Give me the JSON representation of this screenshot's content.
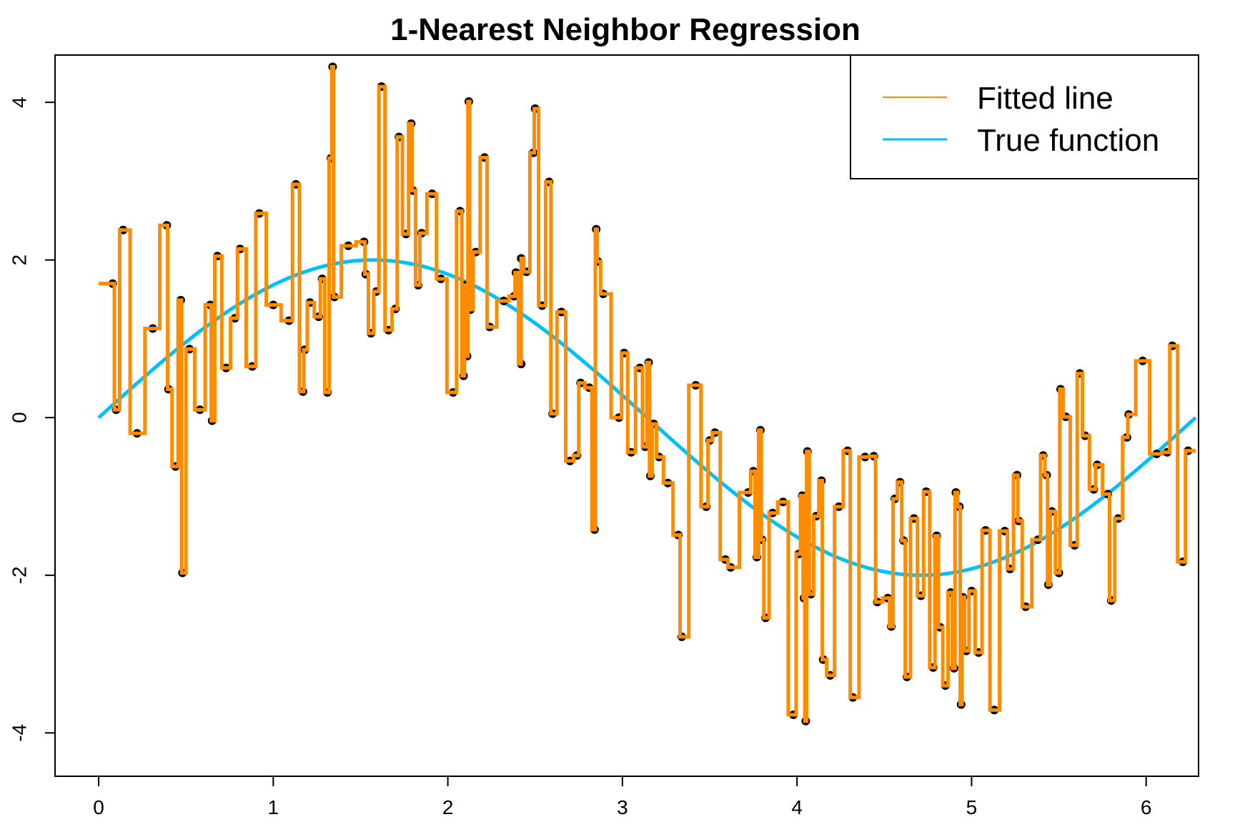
{
  "chart_data": {
    "type": "scatter",
    "title": "1-Nearest Neighbor Regression",
    "xlabel": "",
    "ylabel": "",
    "xlim": [
      -0.25,
      6.3
    ],
    "ylim": [
      -4.55,
      4.6
    ],
    "x_ticks": [
      0,
      1,
      2,
      3,
      4,
      5,
      6
    ],
    "x_tick_labels": [
      "0",
      "1",
      "2",
      "3",
      "4",
      "5",
      "6"
    ],
    "y_ticks": [
      -4,
      -2,
      0,
      2,
      4
    ],
    "y_tick_labels": [
      "-4",
      "-2",
      "0",
      "2",
      "4"
    ],
    "grid": false,
    "legend": {
      "position": "top-right",
      "entries": [
        {
          "label": "Fitted line",
          "color": "#FF8C00"
        },
        {
          "label": "True function",
          "color": "#00BFFF"
        }
      ]
    },
    "colors": {
      "points": "#000000",
      "fitted": "#FF8C00",
      "true_function": "#00BFFF"
    },
    "true_function": {
      "formula": "2*sin(x)",
      "amplitude": 2,
      "x_range": [
        0,
        6.283
      ]
    },
    "series": [
      {
        "name": "data",
        "points": [
          [
            0.08,
            1.7
          ],
          [
            0.1,
            0.1
          ],
          [
            0.14,
            2.38
          ],
          [
            0.22,
            -0.2
          ],
          [
            0.31,
            1.13
          ],
          [
            0.39,
            2.44
          ],
          [
            0.4,
            0.36
          ],
          [
            0.44,
            -0.62
          ],
          [
            0.47,
            1.49
          ],
          [
            0.48,
            -1.97
          ],
          [
            0.52,
            0.87
          ],
          [
            0.58,
            0.1
          ],
          [
            0.64,
            1.43
          ],
          [
            0.65,
            -0.04
          ],
          [
            0.68,
            2.05
          ],
          [
            0.73,
            0.63
          ],
          [
            0.78,
            1.26
          ],
          [
            0.81,
            2.14
          ],
          [
            0.88,
            0.65
          ],
          [
            0.92,
            2.59
          ],
          [
            1.0,
            1.43
          ],
          [
            1.09,
            1.23
          ],
          [
            1.13,
            2.96
          ],
          [
            1.17,
            0.33
          ],
          [
            1.18,
            0.86
          ],
          [
            1.21,
            1.46
          ],
          [
            1.26,
            1.28
          ],
          [
            1.28,
            1.76
          ],
          [
            1.31,
            0.32
          ],
          [
            1.33,
            3.29
          ],
          [
            1.34,
            4.45
          ],
          [
            1.35,
            1.53
          ],
          [
            1.43,
            2.18
          ],
          [
            1.52,
            2.23
          ],
          [
            1.53,
            1.82
          ],
          [
            1.56,
            1.07
          ],
          [
            1.59,
            1.6
          ],
          [
            1.62,
            4.2
          ],
          [
            1.66,
            1.11
          ],
          [
            1.7,
            1.38
          ],
          [
            1.72,
            3.56
          ],
          [
            1.76,
            2.33
          ],
          [
            1.79,
            3.73
          ],
          [
            1.8,
            2.88
          ],
          [
            1.83,
            1.68
          ],
          [
            1.85,
            2.34
          ],
          [
            1.91,
            2.84
          ],
          [
            1.96,
            1.76
          ],
          [
            2.03,
            0.32
          ],
          [
            2.07,
            2.62
          ],
          [
            2.09,
            0.53
          ],
          [
            2.1,
            1.68
          ],
          [
            2.11,
            0.78
          ],
          [
            2.12,
            4.01
          ],
          [
            2.13,
            1.37
          ],
          [
            2.16,
            2.1
          ],
          [
            2.21,
            3.3
          ],
          [
            2.24,
            1.15
          ],
          [
            2.32,
            1.48
          ],
          [
            2.38,
            1.54
          ],
          [
            2.39,
            1.84
          ],
          [
            2.42,
            0.68
          ],
          [
            2.42,
            2.02
          ],
          [
            2.45,
            1.85
          ],
          [
            2.49,
            3.36
          ],
          [
            2.5,
            3.92
          ],
          [
            2.54,
            1.42
          ],
          [
            2.58,
            2.99
          ],
          [
            2.6,
            0.05
          ],
          [
            2.65,
            1.34
          ],
          [
            2.7,
            -0.55
          ],
          [
            2.74,
            -0.48
          ],
          [
            2.76,
            0.44
          ],
          [
            2.81,
            0.38
          ],
          [
            2.84,
            -1.42
          ],
          [
            2.85,
            2.39
          ],
          [
            2.86,
            1.98
          ],
          [
            2.89,
            1.57
          ],
          [
            2.98,
            0.0
          ],
          [
            3.01,
            0.82
          ],
          [
            3.05,
            -0.44
          ],
          [
            3.1,
            0.63
          ],
          [
            3.13,
            -0.37
          ],
          [
            3.15,
            0.7
          ],
          [
            3.16,
            -0.74
          ],
          [
            3.18,
            -0.08
          ],
          [
            3.21,
            -0.5
          ],
          [
            3.26,
            -0.83
          ],
          [
            3.32,
            -1.49
          ],
          [
            3.34,
            -2.78
          ],
          [
            3.42,
            0.41
          ],
          [
            3.48,
            -1.13
          ],
          [
            3.5,
            -0.29
          ],
          [
            3.53,
            -0.19
          ],
          [
            3.59,
            -1.8
          ],
          [
            3.62,
            -1.9
          ],
          [
            3.72,
            -0.95
          ],
          [
            3.75,
            -0.68
          ],
          [
            3.77,
            -1.77
          ],
          [
            3.79,
            -0.16
          ],
          [
            3.8,
            -1.55
          ],
          [
            3.82,
            -2.54
          ],
          [
            3.86,
            -1.21
          ],
          [
            3.92,
            -1.07
          ],
          [
            3.98,
            -3.77
          ],
          [
            4.01,
            -1.73
          ],
          [
            4.03,
            -0.99
          ],
          [
            4.04,
            -2.29
          ],
          [
            4.05,
            -3.85
          ],
          [
            4.06,
            -0.43
          ],
          [
            4.08,
            -2.24
          ],
          [
            4.11,
            -1.25
          ],
          [
            4.14,
            -0.8
          ],
          [
            4.15,
            -3.07
          ],
          [
            4.19,
            -3.27
          ],
          [
            4.24,
            -1.13
          ],
          [
            4.29,
            -0.42
          ],
          [
            4.32,
            -3.55
          ],
          [
            4.39,
            -0.5
          ],
          [
            4.44,
            -0.49
          ],
          [
            4.46,
            -2.34
          ],
          [
            4.52,
            -2.29
          ],
          [
            4.54,
            -2.65
          ],
          [
            4.56,
            -1.03
          ],
          [
            4.59,
            -0.82
          ],
          [
            4.61,
            -1.56
          ],
          [
            4.63,
            -3.29
          ],
          [
            4.67,
            -1.28
          ],
          [
            4.71,
            -2.26
          ],
          [
            4.74,
            -0.94
          ],
          [
            4.78,
            -3.17
          ],
          [
            4.8,
            -1.5
          ],
          [
            4.82,
            -2.66
          ],
          [
            4.85,
            -3.4
          ],
          [
            4.88,
            -2.22
          ],
          [
            4.9,
            -3.18
          ],
          [
            4.91,
            -0.95
          ],
          [
            4.93,
            -1.13
          ],
          [
            4.94,
            -3.64
          ],
          [
            4.95,
            -2.28
          ],
          [
            4.97,
            -2.96
          ],
          [
            5.0,
            -2.2
          ],
          [
            5.04,
            -2.98
          ],
          [
            5.08,
            -1.43
          ],
          [
            5.13,
            -3.71
          ],
          [
            5.19,
            -1.44
          ],
          [
            5.22,
            -1.92
          ],
          [
            5.26,
            -0.73
          ],
          [
            5.27,
            -1.31
          ],
          [
            5.31,
            -2.4
          ],
          [
            5.38,
            -1.55
          ],
          [
            5.41,
            -0.48
          ],
          [
            5.43,
            -0.73
          ],
          [
            5.44,
            -2.12
          ],
          [
            5.46,
            -1.19
          ],
          [
            5.5,
            -1.97
          ],
          [
            5.51,
            0.36
          ],
          [
            5.54,
            0.01
          ],
          [
            5.59,
            -1.62
          ],
          [
            5.62,
            0.56
          ],
          [
            5.65,
            -0.23
          ],
          [
            5.7,
            -0.91
          ],
          [
            5.72,
            -0.6
          ],
          [
            5.78,
            -0.97
          ],
          [
            5.8,
            -2.32
          ],
          [
            5.84,
            -1.28
          ],
          [
            5.89,
            -0.25
          ],
          [
            5.9,
            0.04
          ],
          [
            5.98,
            0.72
          ],
          [
            6.06,
            -0.46
          ],
          [
            6.12,
            -0.44
          ],
          [
            6.15,
            0.91
          ],
          [
            6.21,
            -1.83
          ],
          [
            6.24,
            -0.42
          ]
        ]
      }
    ]
  }
}
